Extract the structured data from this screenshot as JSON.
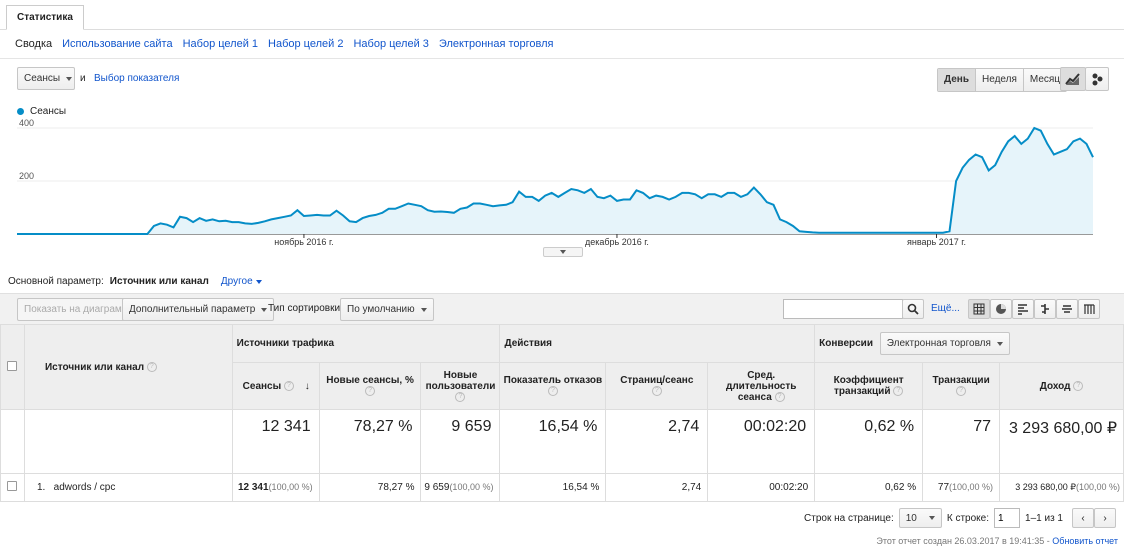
{
  "tab": {
    "label": "Статистика"
  },
  "subtabs": [
    {
      "label": "Сводка",
      "active": true
    },
    {
      "label": "Использование сайта"
    },
    {
      "label": "Набор целей 1"
    },
    {
      "label": "Набор целей 2"
    },
    {
      "label": "Набор целей 3"
    },
    {
      "label": "Электронная торговля"
    }
  ],
  "metric_select": {
    "value": "Сеансы",
    "and": "и",
    "choose_metric": "Выбор показателя"
  },
  "period": {
    "day": "День",
    "week": "Неделя",
    "month": "Месяц",
    "selected": "День"
  },
  "chart_icons": [
    "line-chart-icon",
    "motion-chart-icon"
  ],
  "chart_data": {
    "type": "area",
    "series": [
      {
        "name": "Сеансы",
        "color": "#058dc7",
        "values": [
          0,
          0,
          0,
          0,
          0,
          0,
          0,
          0,
          0,
          0,
          0,
          0,
          0,
          0,
          0,
          0,
          0,
          0,
          0,
          0,
          0,
          30,
          40,
          35,
          25,
          65,
          60,
          45,
          60,
          50,
          55,
          48,
          50,
          45,
          45,
          40,
          38,
          42,
          48,
          55,
          60,
          65,
          70,
          90,
          68,
          70,
          72,
          70,
          70,
          88,
          70,
          48,
          45,
          60,
          68,
          72,
          80,
          95,
          95,
          105,
          115,
          110,
          105,
          90,
          84,
          85,
          83,
          80,
          95,
          100,
          115,
          115,
          110,
          105,
          108,
          110,
          120,
          160,
          140,
          140,
          125,
          145,
          155,
          140,
          155,
          170,
          165,
          155,
          170,
          140,
          135,
          145,
          125,
          130,
          130,
          165,
          155,
          135,
          145,
          140,
          130,
          140,
          155,
          155,
          150,
          135,
          150,
          150,
          140,
          155,
          155,
          140,
          150,
          175,
          150,
          120,
          110,
          55,
          45,
          30,
          10,
          8,
          6,
          5,
          5,
          5,
          5,
          5,
          5,
          5,
          5,
          5,
          5,
          5,
          5,
          5,
          5,
          5,
          5,
          5,
          5,
          5,
          5,
          10,
          200,
          250,
          280,
          300,
          290,
          240,
          260,
          310,
          350,
          370,
          340,
          360,
          400,
          390,
          340,
          300,
          310,
          320,
          350,
          360,
          340,
          290
        ]
      }
    ],
    "ylim": [
      0,
      400
    ],
    "yticks": [
      200,
      400
    ],
    "x_labels": [
      {
        "label": "ноябрь 2016 г.",
        "index": 44
      },
      {
        "label": "декабрь 2016 г.",
        "index": 92
      },
      {
        "label": "январь 2017 г.",
        "index": 141
      }
    ],
    "grid": true
  },
  "dimension": {
    "label": "Основной параметр:",
    "value": "Источник или канал",
    "other": "Другое"
  },
  "toolbar": {
    "plot_rows": "Показать на диаграмме",
    "secondary_dimension": "Дополнительный параметр",
    "sort_label": "Тип сортировки:",
    "sort_value": "По умолчанию",
    "search_placeholder": "",
    "more": "Ещё..."
  },
  "table": {
    "groups": {
      "acquisition": "Источники трафика",
      "behavior": "Действия",
      "conversions": "Конверсии",
      "conversion_select": "Электронная торговля"
    },
    "dimension_header": "Источник или канал",
    "columns": [
      "Сеансы",
      "Новые сеансы, %",
      "Новые пользователи",
      "Показатель отказов",
      "Страниц/сеанс",
      "Сред. длительность сеанса",
      "Коэффициент транзакций",
      "Транзакции",
      "Доход"
    ],
    "totals": [
      "12 341",
      "78,27 %",
      "9 659",
      "16,54 %",
      "2,74",
      "00:02:20",
      "0,62 %",
      "77",
      "3 293 680,00 ₽"
    ],
    "rows": [
      {
        "index": "1.",
        "name": "adwords / cpc",
        "sessions": "12 341",
        "sessions_pct": "(100,00 %)",
        "new_sessions": "78,27 %",
        "new_users": "9 659",
        "new_users_pct": "(100,00 %)",
        "bounce": "16,54 %",
        "pages": "2,74",
        "duration": "00:02:20",
        "conv_rate": "0,62 %",
        "transactions": "77",
        "transactions_pct": "(100,00 %)",
        "revenue": "3 293 680,00 ₽",
        "revenue_pct": "(100,00 %)"
      }
    ]
  },
  "pagination": {
    "rows_label": "Строк на странице:",
    "rows_value": "10",
    "goto_label": "К строке:",
    "goto_value": "1",
    "range": "1–1 из 1"
  },
  "report_footer": {
    "created": "Этот отчет создан 26.03.2017 в 19:41:35 -",
    "refresh": "Обновить отчет"
  }
}
